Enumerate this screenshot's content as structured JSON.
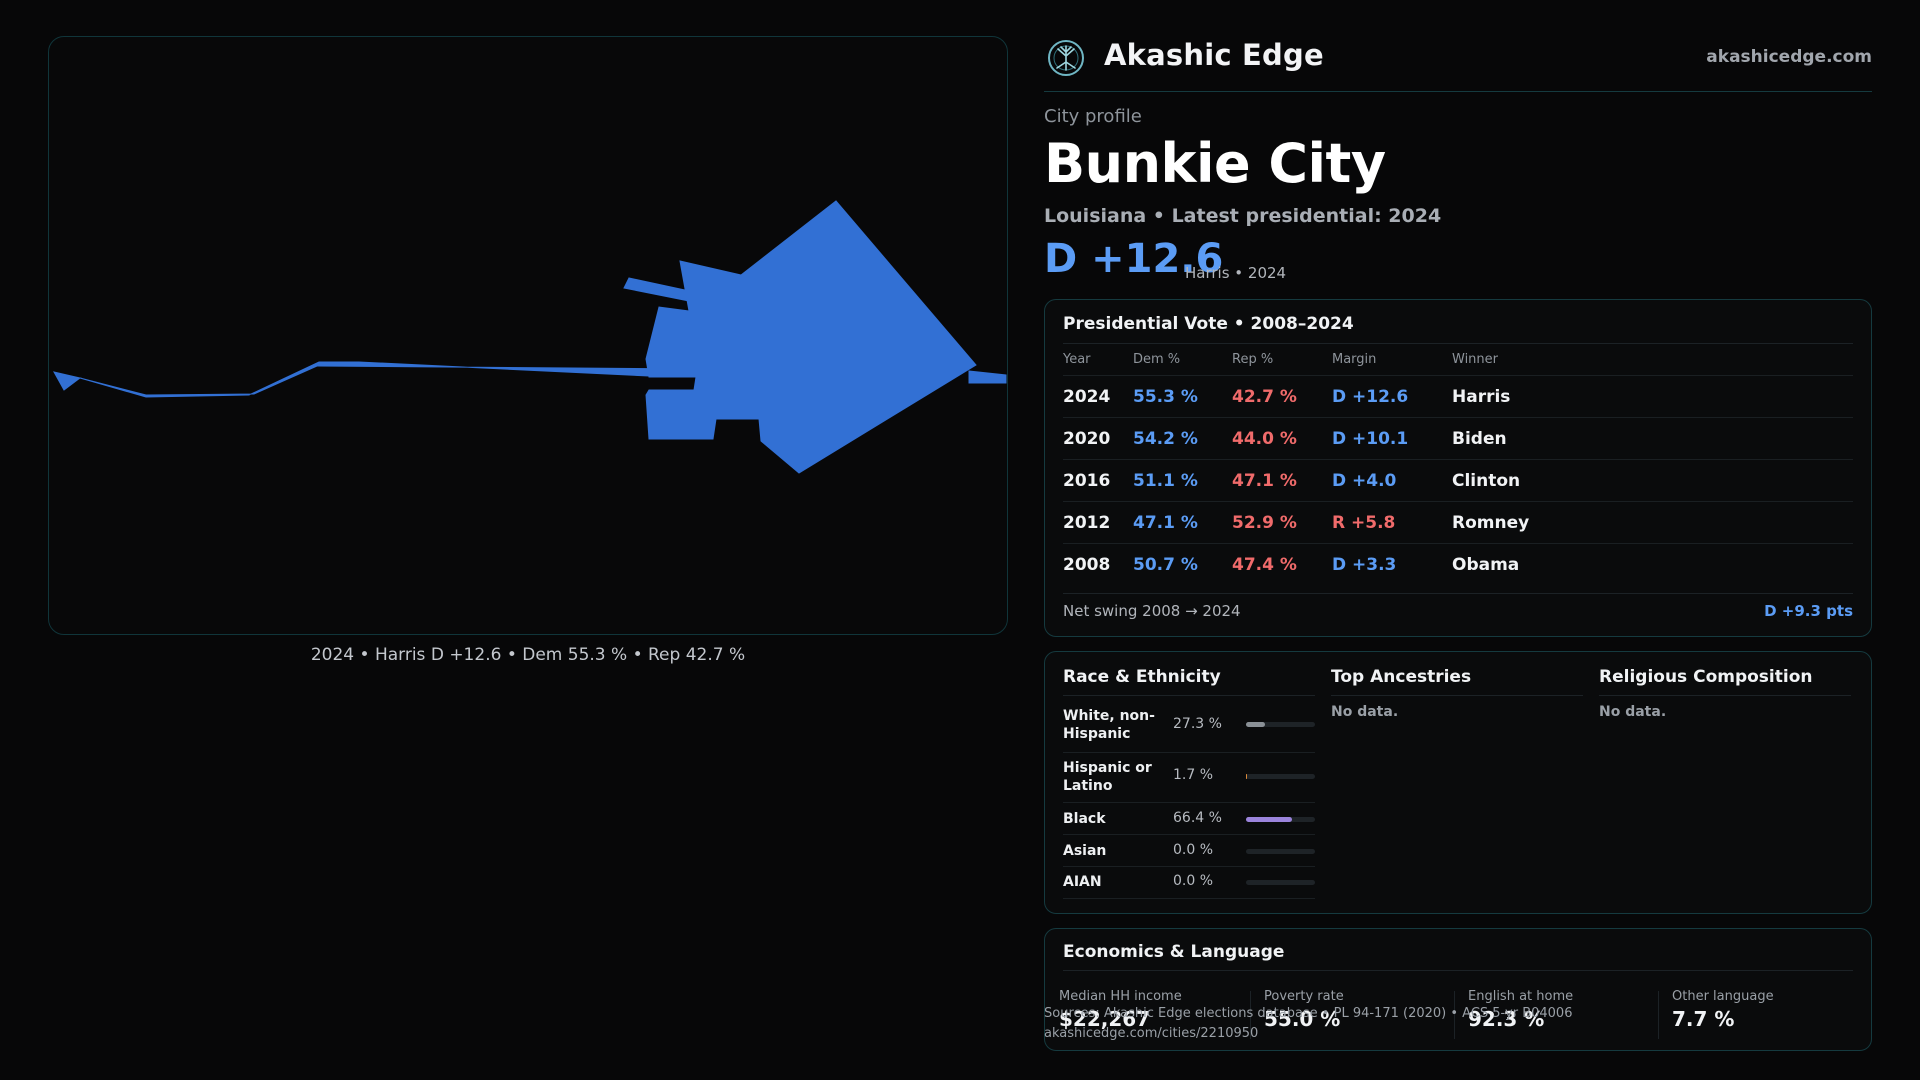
{
  "brand": {
    "name": "Akashic Edge",
    "url": "akashicedge.com",
    "logo_icon": "compass-tree-icon"
  },
  "profile": {
    "kicker": "City profile",
    "city": "Bunkie City",
    "subtitle": "Louisiana • Latest presidential: 2024",
    "margin": "D +12.6",
    "margin_note": "Harris • 2024"
  },
  "map": {
    "caption": "2024 • Harris D +12.6 • Dem 55.3 % • Rep 42.7 %",
    "fill_color": "#3270d4"
  },
  "presidential": {
    "title": "Presidential Vote • 2008–2024",
    "columns": [
      "Year",
      "Dem %",
      "Rep %",
      "Margin",
      "Winner"
    ],
    "rows": [
      {
        "year": "2024",
        "dem": "55.3 %",
        "rep": "42.7 %",
        "margin": "D +12.6",
        "party": "D",
        "winner": "Harris"
      },
      {
        "year": "2020",
        "dem": "54.2 %",
        "rep": "44.0 %",
        "margin": "D +10.1",
        "party": "D",
        "winner": "Biden"
      },
      {
        "year": "2016",
        "dem": "51.1 %",
        "rep": "47.1 %",
        "margin": "D +4.0",
        "party": "D",
        "winner": "Clinton"
      },
      {
        "year": "2012",
        "dem": "47.1 %",
        "rep": "52.9 %",
        "margin": "R +5.8",
        "party": "R",
        "winner": "Romney"
      },
      {
        "year": "2008",
        "dem": "50.7 %",
        "rep": "47.4 %",
        "margin": "D +3.3",
        "party": "D",
        "winner": "Obama"
      }
    ],
    "swing_label": "Net swing 2008 → 2024",
    "swing_value": "D +9.3 pts"
  },
  "race": {
    "title": "Race & Ethnicity",
    "items": [
      {
        "label": "White, non-Hispanic",
        "pct": "27.3 %",
        "value": 27.3,
        "color": "#8a9096"
      },
      {
        "label": "Hispanic or Latino",
        "pct": "1.7 %",
        "value": 1.7,
        "color": "#d8893a"
      },
      {
        "label": "Black",
        "pct": "66.4 %",
        "value": 66.4,
        "color": "#9b84dc"
      },
      {
        "label": "Asian",
        "pct": "0.0 %",
        "value": 0.0,
        "color": "#5b9cf5"
      },
      {
        "label": "AIAN",
        "pct": "0.0 %",
        "value": 0.0,
        "color": "#5b9cf5"
      }
    ]
  },
  "ancestries": {
    "title": "Top Ancestries",
    "empty": "No data."
  },
  "religion": {
    "title": "Religious Composition",
    "empty": "No data."
  },
  "economics": {
    "title": "Economics & Language",
    "stats": [
      {
        "label": "Median HH income",
        "value": "$22,267"
      },
      {
        "label": "Poverty rate",
        "value": "55.0 %"
      },
      {
        "label": "English at home",
        "value": "92.3 %"
      },
      {
        "label": "Other language",
        "value": "7.7 %"
      }
    ]
  },
  "footer": {
    "sources": "Sources: Akashic Edge elections database • PL 94-171 (2020) • ACS 5-yr B04006",
    "link": "akashicedge.com/cities/2210950"
  }
}
